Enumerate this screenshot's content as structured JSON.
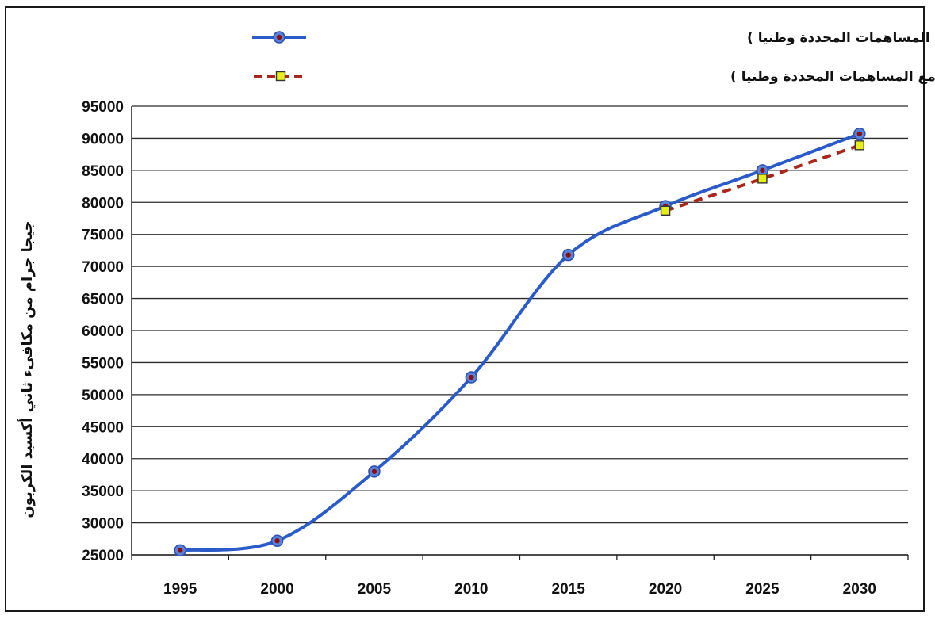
{
  "chart_data": {
    "type": "line",
    "title": "",
    "xlabel": "",
    "ylabel": "جيجا جرام من مكافىء ثاني أكسيد الكربون",
    "categories": [
      "1995",
      "2000",
      "2005",
      "2010",
      "2015",
      "2020",
      "2025",
      "2030"
    ],
    "ylim": [
      25000,
      95000
    ],
    "yticks": [
      95000,
      90000,
      85000,
      80000,
      75000,
      70000,
      65000,
      60000,
      55000,
      50000,
      45000,
      40000,
      35000,
      30000,
      25000
    ],
    "grid": true,
    "legend_position": "top",
    "series": [
      {
        "name": "مجموع انبعاثات غازات الدفيئة  (بدون المساهمات المحددة وطنيا )",
        "x": [
          1995,
          2000,
          2005,
          2010,
          2015,
          2020,
          2025,
          2030
        ],
        "values": [
          25700,
          27200,
          38000,
          52700,
          71800,
          79400,
          85000,
          90700
        ],
        "color": "#2a5bc9",
        "style": "solid",
        "marker": "circle"
      },
      {
        "name": "مجموع انبعاثات غازات الدفيئة  (مع المساهمات المحددة وطنيا )",
        "x": [
          2020,
          2025,
          2030
        ],
        "values": [
          78700,
          83700,
          88900
        ],
        "color": "#a8261c",
        "style": "dashed",
        "marker": "square",
        "marker_fill": "#e6ef1c"
      }
    ]
  }
}
